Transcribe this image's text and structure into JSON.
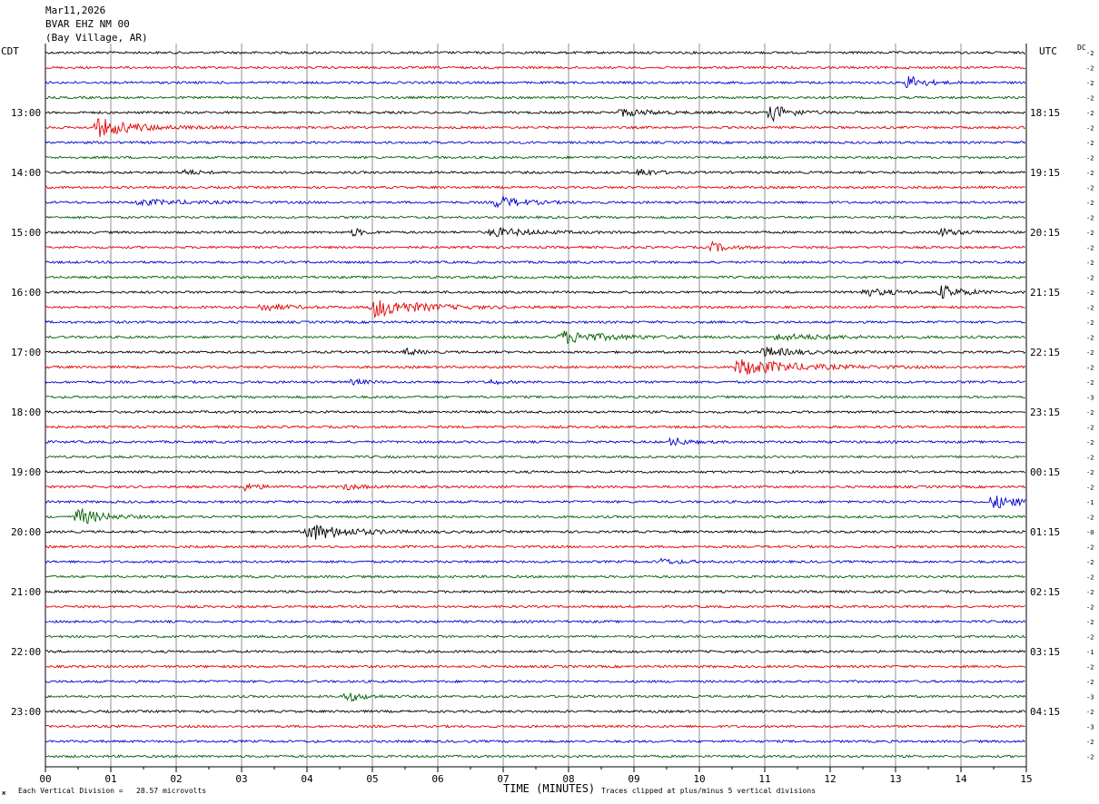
{
  "header": {
    "date": "Mar11,2026",
    "station": "BVAR EHZ NM 00",
    "location": "(Bay Village, AR)"
  },
  "left_timezone": "CDT",
  "right_timezone": "UTC",
  "dc_label": "DC",
  "xaxis_title": "TIME (MINUTES)",
  "footer": {
    "scale_note": "Each Vertical Division =   28.57 microvolts",
    "clip_note": "Traces clipped at plus/minus 5 vertical divisions",
    "corner_mark": "ж"
  },
  "chart_data": {
    "type": "line",
    "title": "",
    "xlabel": "TIME (MINUTES)",
    "xlim": [
      0,
      15
    ],
    "x_tick_labels": [
      "00",
      "01",
      "02",
      "03",
      "04",
      "05",
      "06",
      "07",
      "08",
      "09",
      "10",
      "11",
      "12",
      "13",
      "14",
      "15"
    ],
    "trace_colors": [
      "#000000",
      "#e00000",
      "#0000d0",
      "#006000"
    ],
    "trace_count": 48,
    "left_hour_labels": [
      "13:00",
      "14:00",
      "15:00",
      "16:00",
      "17:00",
      "18:00",
      "19:00",
      "20:00",
      "21:00",
      "22:00",
      "23:00"
    ],
    "right_hour_labels": [
      "18:15",
      "19:15",
      "20:15",
      "21:15",
      "22:15",
      "23:15",
      "00:15",
      "01:15",
      "02:15",
      "03:15",
      "04:15"
    ],
    "hour_label_start_trace": 4,
    "dc_offsets": [
      "-2",
      "-2",
      "-2",
      "-2",
      "-2",
      "-2",
      "-2",
      "-2",
      "-2",
      "-2",
      "-2",
      "-2",
      "-2",
      "-2",
      "-2",
      "-2",
      "-2",
      "-2",
      "-2",
      "-2",
      "-2",
      "-2",
      "-2",
      "-3",
      "-2",
      "-2",
      "-2",
      "-2",
      "-2",
      "-2",
      "-1",
      "-2",
      "-0",
      "-2",
      "-2",
      "-2",
      "-2",
      "-2",
      "-2",
      "-2",
      "-1",
      "-2",
      "-2",
      "-3",
      "-2",
      "-3",
      "-2",
      "-2"
    ],
    "events": [
      {
        "trace": 2,
        "minute": 13.2,
        "amplitude": 8,
        "duration": 0.5
      },
      {
        "trace": 4,
        "minute": 8.8,
        "amplitude": 4,
        "duration": 1.0
      },
      {
        "trace": 4,
        "minute": 11.1,
        "amplitude": 9,
        "duration": 0.6
      },
      {
        "trace": 5,
        "minute": 0.8,
        "amplitude": 10,
        "duration": 1.2
      },
      {
        "trace": 8,
        "minute": 2.1,
        "amplitude": 3,
        "duration": 0.5
      },
      {
        "trace": 8,
        "minute": 9.1,
        "amplitude": 5,
        "duration": 0.4
      },
      {
        "trace": 10,
        "minute": 1.4,
        "amplitude": 3,
        "duration": 1.5
      },
      {
        "trace": 10,
        "minute": 6.9,
        "amplitude": 7,
        "duration": 0.8
      },
      {
        "trace": 12,
        "minute": 4.7,
        "amplitude": 5,
        "duration": 0.3
      },
      {
        "trace": 12,
        "minute": 6.8,
        "amplitude": 5,
        "duration": 1.2
      },
      {
        "trace": 12,
        "minute": 13.7,
        "amplitude": 4,
        "duration": 0.6
      },
      {
        "trace": 13,
        "minute": 10.2,
        "amplitude": 5,
        "duration": 0.5
      },
      {
        "trace": 16,
        "minute": 12.5,
        "amplitude": 4,
        "duration": 1.0
      },
      {
        "trace": 16,
        "minute": 13.7,
        "amplitude": 7,
        "duration": 0.7
      },
      {
        "trace": 17,
        "minute": 3.3,
        "amplitude": 4,
        "duration": 0.8
      },
      {
        "trace": 17,
        "minute": 5.0,
        "amplitude": 11,
        "duration": 1.4
      },
      {
        "trace": 19,
        "minute": 7.9,
        "amplitude": 7,
        "duration": 1.4
      },
      {
        "trace": 19,
        "minute": 11.2,
        "amplitude": 3,
        "duration": 2.0
      },
      {
        "trace": 20,
        "minute": 5.5,
        "amplitude": 4,
        "duration": 0.4
      },
      {
        "trace": 20,
        "minute": 11.0,
        "amplitude": 5,
        "duration": 1.0
      },
      {
        "trace": 21,
        "minute": 10.6,
        "amplitude": 9,
        "duration": 1.8
      },
      {
        "trace": 22,
        "minute": 4.7,
        "amplitude": 3,
        "duration": 0.4
      },
      {
        "trace": 22,
        "minute": 6.8,
        "amplitude": 3,
        "duration": 0.3
      },
      {
        "trace": 26,
        "minute": 9.6,
        "amplitude": 5,
        "duration": 0.4
      },
      {
        "trace": 29,
        "minute": 3.0,
        "amplitude": 4,
        "duration": 0.6
      },
      {
        "trace": 29,
        "minute": 4.6,
        "amplitude": 3,
        "duration": 0.5
      },
      {
        "trace": 30,
        "minute": 14.5,
        "amplitude": 7,
        "duration": 0.9
      },
      {
        "trace": 31,
        "minute": 0.5,
        "amplitude": 10,
        "duration": 0.7
      },
      {
        "trace": 32,
        "minute": 4.0,
        "amplitude": 10,
        "duration": 1.2
      },
      {
        "trace": 34,
        "minute": 9.4,
        "amplitude": 3,
        "duration": 0.6
      },
      {
        "trace": 43,
        "minute": 4.6,
        "amplitude": 6,
        "duration": 0.5
      }
    ]
  }
}
